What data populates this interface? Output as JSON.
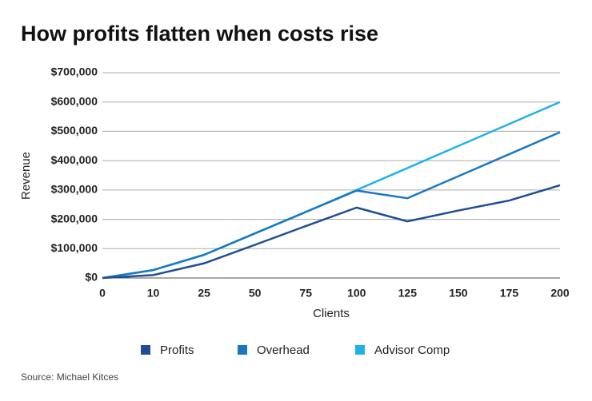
{
  "chart_data": {
    "type": "line",
    "title": "How profits flatten when costs rise",
    "x_label": "Clients",
    "y_label": "Revenue",
    "source": "Source: Michael Kitces",
    "categories": [
      "0",
      "10",
      "25",
      "50",
      "75",
      "100",
      "125",
      "150",
      "175",
      "200"
    ],
    "series": [
      {
        "name": "Profits",
        "color": "#1f4e96",
        "values": [
          0,
          10000,
          50000,
          113000,
          177000,
          240000,
          193000,
          230000,
          264000,
          316000
        ]
      },
      {
        "name": "Overhead",
        "color": "#1a78c2",
        "values": [
          0,
          27000,
          79000,
          152000,
          225000,
          298000,
          272000,
          347000,
          422000,
          497000
        ]
      },
      {
        "name": "Advisor Comp",
        "color": "#1fb3e8",
        "values": [
          0,
          27000,
          79000,
          152000,
          225000,
          300000,
          375000,
          450000,
          525000,
          600000
        ]
      }
    ],
    "ylim": [
      0,
      700000
    ],
    "yticks": [
      {
        "value": 0,
        "label": "$0"
      },
      {
        "value": 100000,
        "label": "$100,000"
      },
      {
        "value": 200000,
        "label": "$200,000"
      },
      {
        "value": 300000,
        "label": "$300,000"
      },
      {
        "value": 400000,
        "label": "$400,000"
      },
      {
        "value": 500000,
        "label": "$500,000"
      },
      {
        "value": 600000,
        "label": "$600,000"
      },
      {
        "value": 700000,
        "label": "$700,000"
      }
    ],
    "grid": true
  }
}
